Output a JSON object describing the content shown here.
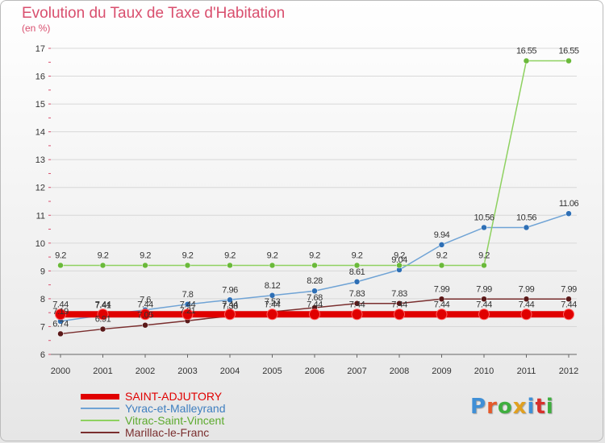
{
  "header": {
    "title": "Evolution du Taux de Taxe d'Habitation",
    "subtitle": "(en %)"
  },
  "logo": {
    "text": "Proxiti",
    "letter_colors": [
      "#3f8fd6",
      "#e55a2b",
      "#3fae3f",
      "#e0a020",
      "#3f8fd6",
      "#d7302c",
      "#3fae3f"
    ]
  },
  "chart_data": {
    "type": "line",
    "title": "Evolution du Taux de Taxe d'Habitation",
    "ylabel": "(en %)",
    "xlabel": "",
    "x": [
      "2000",
      "2001",
      "2002",
      "2003",
      "2004",
      "2005",
      "2006",
      "2007",
      "2008",
      "2009",
      "2010",
      "2011",
      "2012"
    ],
    "ylim": [
      6,
      17
    ],
    "yticks": [
      "6",
      "7",
      "8",
      "9",
      "10",
      "11",
      "12",
      "13",
      "14",
      "15",
      "16",
      "17"
    ],
    "grid": "horizontal",
    "legend_position": "bottom-left",
    "series": [
      {
        "name": "SAINT-ADJUTORY",
        "color": "#e00000",
        "values": [
          7.44,
          7.44,
          7.44,
          7.44,
          7.44,
          7.44,
          7.44,
          7.44,
          7.44,
          7.44,
          7.44,
          7.44,
          7.44
        ],
        "labels": [
          "7.44",
          "7.44",
          "7.44",
          "7.44",
          "7.44",
          "7.44",
          "7.44",
          "7.44",
          "7.44",
          "7.44",
          "7.44",
          "7.44",
          "7.44"
        ]
      },
      {
        "name": "Yvrac-et-Malleyrand",
        "color": "#6fa3d5",
        "values": [
          7.19,
          7.41,
          7.6,
          7.8,
          7.96,
          8.12,
          8.28,
          8.61,
          9.04,
          9.94,
          10.56,
          10.56,
          11.06
        ],
        "labels": [
          "7.19",
          "7.41",
          "7.6",
          "7.8",
          "7.96",
          "8.12",
          "8.28",
          "8.61",
          "9.04",
          "9.94",
          "10.56",
          "10.56",
          "11.06"
        ]
      },
      {
        "name": "Vitrac-Saint-Vincent",
        "color": "#8ed160",
        "values": [
          9.2,
          9.2,
          9.2,
          9.2,
          9.2,
          9.2,
          9.2,
          9.2,
          9.2,
          9.2,
          9.2,
          16.55,
          16.55
        ],
        "labels": [
          "9.2",
          "9.2",
          "9.2",
          "9.2",
          "9.2",
          "9.2",
          "9.2",
          "9.2",
          "9.2",
          "9.2",
          "9.2",
          "16.55",
          "16.55"
        ]
      },
      {
        "name": "Marillac-le-Franc",
        "color": "#7a2e2e",
        "values": [
          6.74,
          6.91,
          7.05,
          7.21,
          7.38,
          7.53,
          7.68,
          7.83,
          7.83,
          7.99,
          7.99,
          7.99,
          7.99
        ],
        "labels": [
          "6.74",
          "6.91",
          "7.05",
          "7.21",
          "7.38",
          "7.53",
          "7.68",
          "7.83",
          "7.83",
          "7.99",
          "7.99",
          "7.99",
          "7.99"
        ]
      }
    ]
  }
}
